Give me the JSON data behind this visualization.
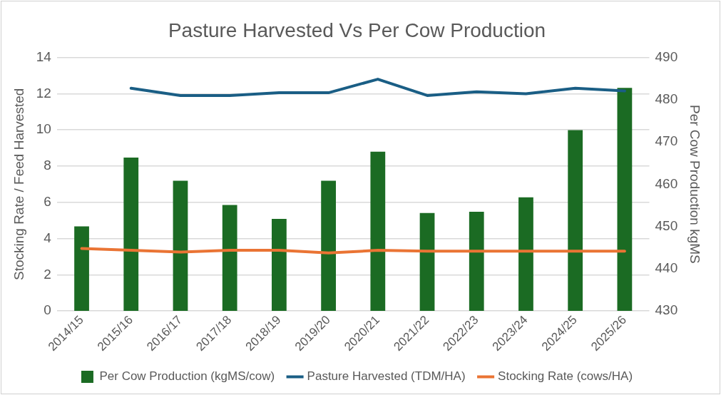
{
  "chart_data": {
    "type": "bar",
    "title": "Pasture Harvested Vs Per Cow Production",
    "ylabel": "Stocking Rate / Feed Harvested",
    "y2label": "Per Cow Production kgMS",
    "categories": [
      "2014/15",
      "2015/16",
      "2016/17",
      "2017/18",
      "2018/19",
      "2019/20",
      "2020/21",
      "2021/22",
      "2022/23",
      "2023/24",
      "2024/25",
      "2025/26"
    ],
    "series": [
      {
        "name": "Per Cow Production (kgMS/cow)",
        "axis": "y2",
        "color": "#1b6b23",
        "values": [
          450.0,
          466.3,
          460.8,
          455.1,
          451.8,
          460.8,
          467.7,
          453.2,
          453.5,
          456.9,
          472.8,
          482.8
        ]
      },
      {
        "name": "Pasture Harvested (TDM/HA)",
        "type": "line",
        "color": "#1a5e85",
        "values": [
          null,
          12.3,
          11.9,
          11.9,
          12.05,
          12.05,
          12.8,
          11.9,
          12.1,
          12.0,
          12.3,
          12.15
        ]
      },
      {
        "name": "Stocking Rate (cows/HA)",
        "type": "line",
        "color": "#ea7434",
        "values": [
          3.45,
          3.35,
          3.25,
          3.35,
          3.35,
          3.2,
          3.35,
          3.3,
          3.3,
          3.3,
          3.3,
          3.3
        ]
      }
    ],
    "ylim": [
      0,
      14
    ],
    "yticks": [
      0,
      2,
      4,
      6,
      8,
      10,
      12,
      14
    ],
    "y2lim": [
      430,
      490
    ],
    "y2ticks": [
      430,
      440,
      450,
      460,
      470,
      480,
      490
    ],
    "grid": "y",
    "legend": "bottom",
    "marker": "none"
  }
}
